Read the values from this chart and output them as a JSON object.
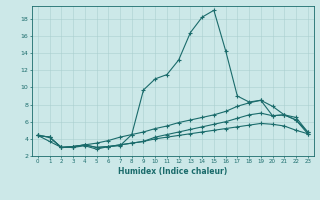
{
  "title": "",
  "xlabel": "Humidex (Indice chaleur)",
  "ylabel": "",
  "background_color": "#cce8e8",
  "line_color": "#1a6b6b",
  "xlim": [
    -0.5,
    23.5
  ],
  "ylim": [
    2,
    19.5
  ],
  "yticks": [
    2,
    4,
    6,
    8,
    10,
    12,
    14,
    16,
    18
  ],
  "xticks": [
    0,
    1,
    2,
    3,
    4,
    5,
    6,
    7,
    8,
    9,
    10,
    11,
    12,
    13,
    14,
    15,
    16,
    17,
    18,
    19,
    20,
    21,
    22,
    23
  ],
  "series": [
    {
      "x": [
        0,
        1,
        2,
        3,
        4,
        5,
        6,
        7,
        8,
        9,
        10,
        11,
        12,
        13,
        14,
        15,
        16,
        17,
        18,
        19,
        20,
        21,
        22,
        23
      ],
      "y": [
        4.4,
        3.7,
        3.0,
        3.0,
        3.2,
        2.8,
        3.1,
        3.2,
        4.5,
        9.7,
        11.0,
        11.5,
        13.2,
        16.4,
        18.2,
        19.0,
        14.3,
        9.0,
        8.3,
        8.5,
        6.7,
        6.8,
        6.2,
        4.8
      ]
    },
    {
      "x": [
        0,
        1,
        2,
        3,
        4,
        5,
        6,
        7,
        8,
        9,
        10,
        11,
        12,
        13,
        14,
        15,
        16,
        17,
        18,
        19,
        20,
        21,
        22,
        23
      ],
      "y": [
        4.4,
        4.2,
        3.0,
        3.1,
        3.3,
        3.5,
        3.8,
        4.2,
        4.5,
        4.8,
        5.2,
        5.5,
        5.9,
        6.2,
        6.5,
        6.8,
        7.2,
        7.8,
        8.2,
        8.5,
        7.8,
        6.8,
        6.5,
        4.8
      ]
    },
    {
      "x": [
        0,
        1,
        2,
        3,
        4,
        5,
        6,
        7,
        8,
        9,
        10,
        11,
        12,
        13,
        14,
        15,
        16,
        17,
        18,
        19,
        20,
        21,
        22,
        23
      ],
      "y": [
        4.4,
        4.2,
        3.0,
        3.1,
        3.3,
        3.0,
        3.1,
        3.3,
        3.5,
        3.7,
        4.2,
        4.5,
        4.8,
        5.1,
        5.4,
        5.7,
        6.0,
        6.4,
        6.8,
        7.0,
        6.7,
        6.8,
        6.2,
        4.6
      ]
    },
    {
      "x": [
        0,
        1,
        2,
        3,
        4,
        5,
        6,
        7,
        8,
        9,
        10,
        11,
        12,
        13,
        14,
        15,
        16,
        17,
        18,
        19,
        20,
        21,
        22,
        23
      ],
      "y": [
        4.4,
        4.2,
        3.0,
        3.1,
        3.3,
        3.0,
        3.1,
        3.3,
        3.5,
        3.7,
        4.0,
        4.2,
        4.4,
        4.6,
        4.8,
        5.0,
        5.2,
        5.4,
        5.6,
        5.8,
        5.7,
        5.5,
        5.0,
        4.6
      ]
    }
  ]
}
